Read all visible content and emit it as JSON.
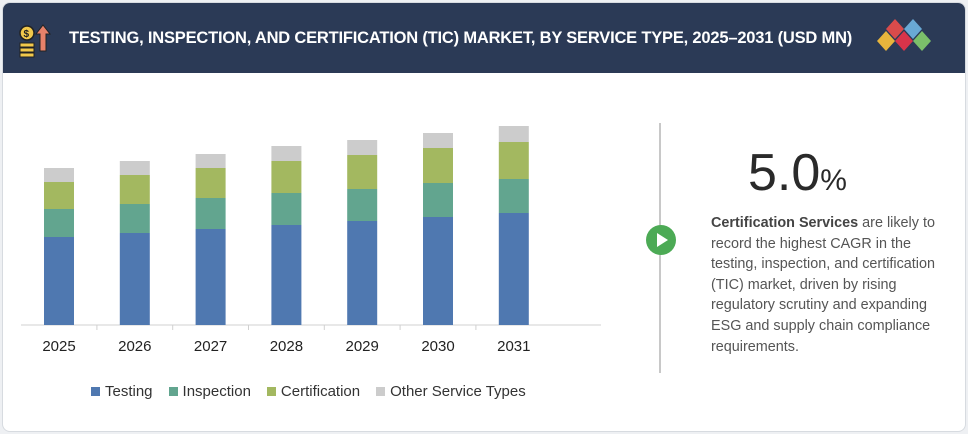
{
  "header": {
    "title": "TESTING, INSPECTION, AND CERTIFICATION (TIC) MARKET, BY SERVICE TYPE, 2025–2031 (USD MN)",
    "icon": "money-growth-icon",
    "logo": "diamond-logo"
  },
  "chart_data": {
    "type": "bar",
    "stacked": true,
    "title": "TESTING, INSPECTION, AND CERTIFICATION (TIC) MARKET, BY SERVICE TYPE, 2025–2031 (USD MN)",
    "categories": [
      "2025",
      "2026",
      "2027",
      "2028",
      "2029",
      "2030",
      "2031"
    ],
    "series": [
      {
        "name": "Testing",
        "color": "#4f78b0",
        "values": [
          88,
          92,
          96,
          100,
          104,
          108,
          112
        ]
      },
      {
        "name": "Inspection",
        "color": "#62a58f",
        "values": [
          28,
          29,
          31,
          32,
          32,
          34,
          34
        ]
      },
      {
        "name": "Certification",
        "color": "#a3b860",
        "values": [
          27,
          29,
          30,
          32,
          34,
          35,
          37
        ]
      },
      {
        "name": "Other Service Types",
        "color": "#cccccc",
        "values": [
          14,
          14,
          14,
          15,
          15,
          15,
          16
        ]
      }
    ],
    "ylim": [
      0,
      200
    ],
    "grid": false,
    "legend": "bottom",
    "y_axis_shown": false
  },
  "highlight": {
    "value": "5.0",
    "unit": "%",
    "bold": "Certification Services",
    "text": " are likely to record the highest CAGR in the testing, inspection, and certification (TIC) market, driven by rising regulatory scrutiny and expanding ESG and supply chain compliance requirements."
  }
}
